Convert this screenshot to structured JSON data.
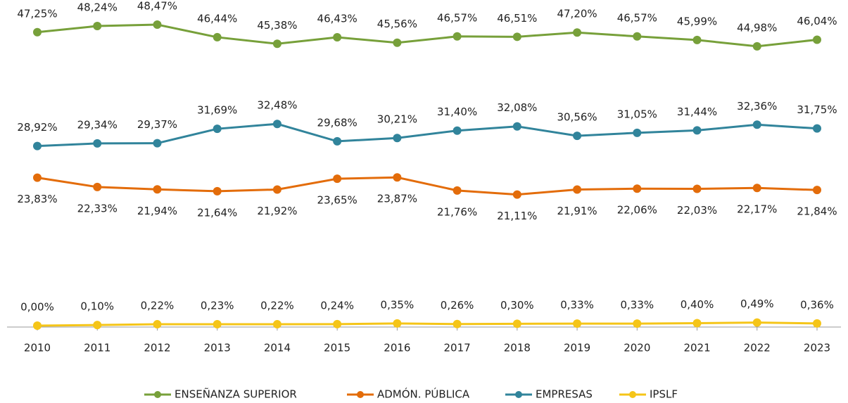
{
  "chart_data": {
    "type": "line",
    "categories": [
      "2010",
      "2011",
      "2012",
      "2013",
      "2014",
      "2015",
      "2016",
      "2017",
      "2018",
      "2019",
      "2020",
      "2021",
      "2022",
      "2023"
    ],
    "ylim": [
      0,
      50
    ],
    "series": [
      {
        "name": "ENSEÑANZA SUPERIOR",
        "color": "#77a03a",
        "label_position": "above",
        "values": [
          47.25,
          48.24,
          48.47,
          46.44,
          45.38,
          46.43,
          45.56,
          46.57,
          46.51,
          47.2,
          46.57,
          45.99,
          44.98,
          46.04
        ],
        "value_labels": [
          "47,25%",
          "48,24%",
          "48,47%",
          "46,44%",
          "45,38%",
          "46,43%",
          "45,56%",
          "46,57%",
          "46,51%",
          "47,20%",
          "46,57%",
          "45,99%",
          "44,98%",
          "46,04%"
        ]
      },
      {
        "name": "ADMÓN. PÚBLICA",
        "color": "#e36c0a",
        "label_position": "below",
        "values": [
          23.83,
          22.33,
          21.94,
          21.64,
          21.92,
          23.65,
          23.87,
          21.76,
          21.11,
          21.91,
          22.06,
          22.03,
          22.17,
          21.84
        ],
        "value_labels": [
          "23,83%",
          "22,33%",
          "21,94%",
          "21,64%",
          "21,92%",
          "23,65%",
          "23,87%",
          "21,76%",
          "21,11%",
          "21,91%",
          "22,06%",
          "22,03%",
          "22,17%",
          "21,84%"
        ]
      },
      {
        "name": "EMPRESAS",
        "color": "#31849b",
        "label_position": "above",
        "values": [
          28.92,
          29.34,
          29.37,
          31.69,
          32.48,
          29.68,
          30.21,
          31.4,
          32.08,
          30.56,
          31.05,
          31.44,
          32.36,
          31.75
        ],
        "value_labels": [
          "28,92%",
          "29,34%",
          "29,37%",
          "31,69%",
          "32,48%",
          "29,68%",
          "30,21%",
          "31,40%",
          "32,08%",
          "30,56%",
          "31,05%",
          "31,44%",
          "32,36%",
          "31,75%"
        ]
      },
      {
        "name": "IPSLF",
        "color": "#f5c518",
        "label_position": "above",
        "values": [
          0,
          0.1,
          0.22,
          0.23,
          0.22,
          0.24,
          0.35,
          0.26,
          0.3,
          0.33,
          0.33,
          0.4,
          0.49,
          0.36
        ],
        "value_labels": [
          "0,00%",
          "0,10%",
          "0,22%",
          "0,23%",
          "0,22%",
          "0,24%",
          "0,35%",
          "0,26%",
          "0,30%",
          "0,33%",
          "0,33%",
          "0,40%",
          "0,49%",
          "0,36%"
        ]
      }
    ]
  }
}
